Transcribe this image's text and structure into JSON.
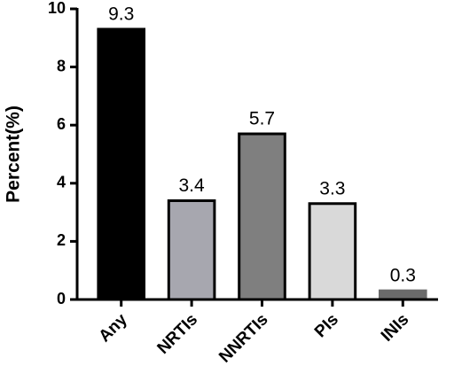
{
  "chart_data": {
    "type": "bar",
    "y_label": "Percent(%)",
    "categories": [
      "Any",
      "NRTIs",
      "NNRTIs",
      "PIs",
      "INIs"
    ],
    "values": [
      9.3,
      3.4,
      5.7,
      3.3,
      0.3
    ],
    "colors": [
      "#000000",
      "#a7a7af",
      "#7f7f7f",
      "#d9d9d9",
      "#6b6b6b"
    ],
    "ylim": [
      0,
      10
    ],
    "yticks": [
      0,
      2,
      4,
      6,
      8,
      10
    ],
    "grid": false
  }
}
